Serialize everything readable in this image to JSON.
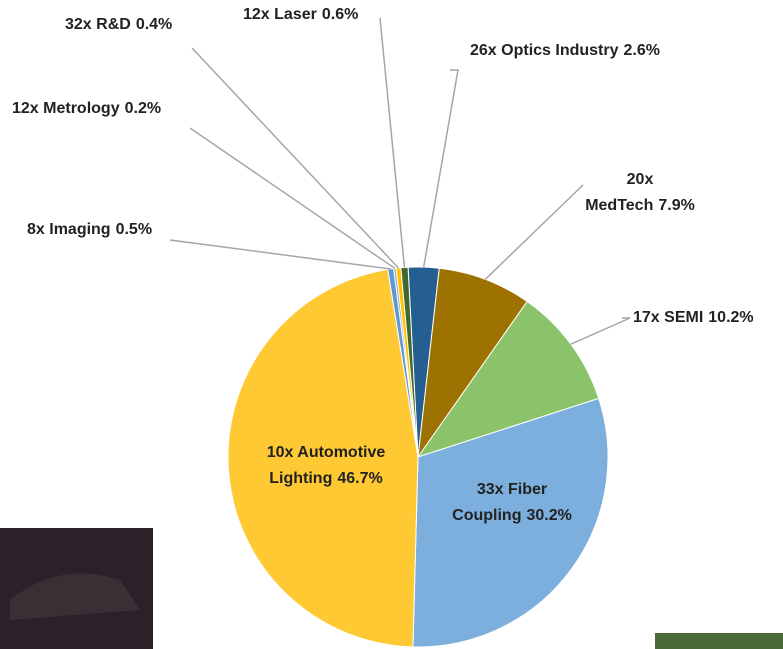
{
  "chart_data": {
    "type": "pie",
    "categories": [
      "26x Optics Industry",
      "20x MedTech",
      "17x SEMI",
      "33x Fiber Coupling",
      "10x Automotive Lighting",
      "8x Imaging",
      "12x Metrology",
      "32x R&D",
      "12x Laser"
    ],
    "values": [
      2.6,
      7.9,
      10.2,
      30.2,
      46.7,
      0.5,
      0.2,
      0.4,
      0.6
    ],
    "value_labels": [
      "2.6%",
      "7.9%",
      "10.2%",
      "30.2%",
      "46.7%",
      "0.5%",
      "0.2%",
      "0.4%",
      "0.6%"
    ],
    "colors": [
      "#255e91",
      "#9e7200",
      "#8bc36a",
      "#7cafdd",
      "#ffc934",
      "#5b9bd5",
      "#a5a5a5",
      "#ffc000",
      "#43682b"
    ]
  }
}
